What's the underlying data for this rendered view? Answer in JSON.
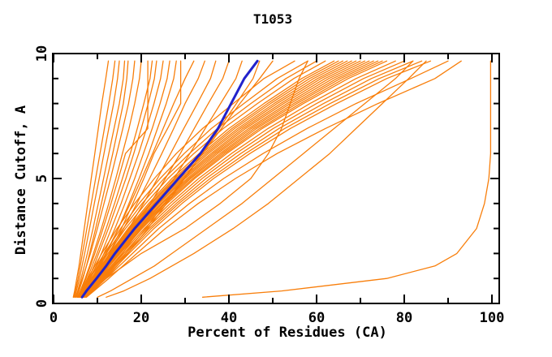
{
  "window": {
    "kind": "plot-image"
  },
  "chart_data": {
    "type": "line",
    "title": "T1053",
    "xlabel": "Percent of Residues (CA)",
    "ylabel": "Distance Cutoff, A",
    "xlim": [
      0,
      100
    ],
    "ylim": [
      0,
      10
    ],
    "x_major_ticks": [
      0,
      20,
      40,
      60,
      80,
      100
    ],
    "x_minor_tick_step": 10,
    "y_major_ticks": [
      0,
      5,
      10
    ],
    "y_minor_tick_step": 1,
    "grid": "off",
    "legend": "none",
    "frame": "full-box-with-mirrored-ticks",
    "colors": {
      "model": "#F87E0A",
      "highlight": "#2222CC",
      "axis": "#000000",
      "background": "#FFFFFF"
    },
    "series_note": "Each curve gives percent of CA residues (x) under distance cutoff (y). 'models' are orange prediction curves; 'highlight' is the thick blue curve; last model is the right-side outlier reaching ~100%.",
    "cutoff_values": [
      0.25,
      0.5,
      1,
      1.5,
      2,
      3,
      4,
      5,
      6,
      7,
      8,
      9,
      9.7
    ],
    "models": [
      [
        4.5,
        4.8,
        5.3,
        5.8,
        6.2,
        7.0,
        7.8,
        8.6,
        9.4,
        10.2,
        11.0,
        11.9,
        12.5
      ],
      [
        4.6,
        5.0,
        5.6,
        6.1,
        6.6,
        7.6,
        8.6,
        9.6,
        10.6,
        11.6,
        12.6,
        13.5,
        14.0
      ],
      [
        4.8,
        5.2,
        5.9,
        6.5,
        7.1,
        8.2,
        9.3,
        10.4,
        11.5,
        12.6,
        13.7,
        14.6,
        15.0
      ],
      [
        5.0,
        5.5,
        6.3,
        7.0,
        7.7,
        9.0,
        10.2,
        11.4,
        12.6,
        13.8,
        15.0,
        15.9,
        16.2
      ],
      [
        5.2,
        5.8,
        6.7,
        7.5,
        8.2,
        9.6,
        10.9,
        12.2,
        13.5,
        14.7,
        15.9,
        16.7,
        17.0
      ],
      [
        5.0,
        5.6,
        6.6,
        7.5,
        8.4,
        10.0,
        11.5,
        13.0,
        14.4,
        15.8,
        17.1,
        18.1,
        18.5
      ],
      [
        5.4,
        6.1,
        7.2,
        8.2,
        9.1,
        10.9,
        12.6,
        14.2,
        15.7,
        17.2,
        18.5,
        19.6,
        20.0
      ],
      [
        5.5,
        6.2,
        7.4,
        8.4,
        9.4,
        11.3,
        13.1,
        14.8,
        16.4,
        21.5,
        21.5,
        21.5,
        21.5
      ],
      [
        5.6,
        6.4,
        7.7,
        8.8,
        9.9,
        12.0,
        13.9,
        15.7,
        17.5,
        19.1,
        20.6,
        22.0,
        22.5
      ],
      [
        5.8,
        6.6,
        8.0,
        9.2,
        10.3,
        12.5,
        14.5,
        16.5,
        18.3,
        20.0,
        21.6,
        23.0,
        23.5
      ],
      [
        6.0,
        6.9,
        8.4,
        9.7,
        10.9,
        13.2,
        15.4,
        17.4,
        19.4,
        21.2,
        22.9,
        24.4,
        25.0
      ],
      [
        6.2,
        7.2,
        8.8,
        10.2,
        11.5,
        14.0,
        16.3,
        18.5,
        20.5,
        22.5,
        24.3,
        25.9,
        26.5
      ],
      [
        6.4,
        7.5,
        9.2,
        10.7,
        12.1,
        14.8,
        17.2,
        19.5,
        21.7,
        23.7,
        25.7,
        27.4,
        28.0
      ],
      [
        6.6,
        7.8,
        9.6,
        11.2,
        12.7,
        15.5,
        18.1,
        20.6,
        22.9,
        26.0,
        29.0,
        29.0,
        29.0
      ],
      [
        6.0,
        7.0,
        8.8,
        10.4,
        11.9,
        14.8,
        17.5,
        20.1,
        22.6,
        25.0,
        27.4,
        30.0,
        32.0
      ],
      [
        6.2,
        7.3,
        9.3,
        11.1,
        12.8,
        16.0,
        19.0,
        21.9,
        24.7,
        27.4,
        30.0,
        33.0,
        34.5
      ],
      [
        6.5,
        7.7,
        9.9,
        11.9,
        13.7,
        17.2,
        20.5,
        23.7,
        26.7,
        29.7,
        32.8,
        35.8,
        37.0
      ],
      [
        6.8,
        8.1,
        10.5,
        12.7,
        14.7,
        18.5,
        22.1,
        25.5,
        28.9,
        32.1,
        35.3,
        38.6,
        40.0
      ],
      [
        7.0,
        8.5,
        11.1,
        13.5,
        15.7,
        19.8,
        23.7,
        27.5,
        31.1,
        34.6,
        38.1,
        41.6,
        43.0
      ],
      [
        7.3,
        9.0,
        11.9,
        14.5,
        16.9,
        21.5,
        25.8,
        29.9,
        33.9,
        37.8,
        41.7,
        45.5,
        47.0
      ],
      [
        7.2,
        8.8,
        11.5,
        14.0,
        16.4,
        21.0,
        25.3,
        29.7,
        34.0,
        38.3,
        42.5,
        47.0,
        50.0
      ],
      [
        7.0,
        8.5,
        12.0,
        16.0,
        20.0,
        30.0,
        38.0,
        45.0,
        49.0,
        52.0,
        54.0,
        56.0,
        58.0
      ],
      [
        5.5,
        6.2,
        7.8,
        9.4,
        11.0,
        14.5,
        18.5,
        23.0,
        28.0,
        34.0,
        41.0,
        48.0,
        55.0
      ],
      [
        5.6,
        6.4,
        8.1,
        9.8,
        11.6,
        15.3,
        19.5,
        24.3,
        29.8,
        36.0,
        43.4,
        51.0,
        58.0
      ],
      [
        5.7,
        6.5,
        8.3,
        10.1,
        12.0,
        15.9,
        20.2,
        25.2,
        31.0,
        37.4,
        45.0,
        53.0,
        60.0
      ],
      [
        5.8,
        6.7,
        8.6,
        10.5,
        12.4,
        16.4,
        21.0,
        26.1,
        32.0,
        38.7,
        46.5,
        54.8,
        62.0
      ],
      [
        5.9,
        6.8,
        8.8,
        10.8,
        12.8,
        17.0,
        21.7,
        27.0,
        33.2,
        40.0,
        48.0,
        56.6,
        64.0
      ],
      [
        6.0,
        6.9,
        9.0,
        11.0,
        13.0,
        17.3,
        22.1,
        27.5,
        33.8,
        40.7,
        48.8,
        57.5,
        65.0
      ],
      [
        6.0,
        7.0,
        9.1,
        11.2,
        13.2,
        17.5,
        22.4,
        27.9,
        34.3,
        41.3,
        49.5,
        58.4,
        66.0
      ],
      [
        6.1,
        7.1,
        9.2,
        11.3,
        13.4,
        17.8,
        22.8,
        28.3,
        34.8,
        42.0,
        50.3,
        59.3,
        67.0
      ],
      [
        6.1,
        7.1,
        9.3,
        11.5,
        13.6,
        18.0,
        23.1,
        28.8,
        35.3,
        42.6,
        51.0,
        60.2,
        68.0
      ],
      [
        6.2,
        7.2,
        9.5,
        11.6,
        13.8,
        18.3,
        23.4,
        29.2,
        35.9,
        43.2,
        51.8,
        61.0,
        69.0
      ],
      [
        6.2,
        7.3,
        9.6,
        11.8,
        14.0,
        18.6,
        23.8,
        29.6,
        36.4,
        43.8,
        52.5,
        61.9,
        70.0
      ],
      [
        6.3,
        7.4,
        9.7,
        12.0,
        14.2,
        18.8,
        24.1,
        30.0,
        36.9,
        44.5,
        53.3,
        62.8,
        71.0
      ],
      [
        6.3,
        7.4,
        9.8,
        12.1,
        14.4,
        19.1,
        24.5,
        30.5,
        37.4,
        45.1,
        54.0,
        63.7,
        72.0
      ],
      [
        6.4,
        7.5,
        9.9,
        12.3,
        14.6,
        19.4,
        24.8,
        30.9,
        38.0,
        45.7,
        54.8,
        64.6,
        73.0
      ],
      [
        6.4,
        7.6,
        10.1,
        12.4,
        14.8,
        19.6,
        25.2,
        31.3,
        38.5,
        46.3,
        55.5,
        65.4,
        74.0
      ],
      [
        6.5,
        7.7,
        10.2,
        12.6,
        15.0,
        19.9,
        25.5,
        31.8,
        39.0,
        47.0,
        56.3,
        66.3,
        75.0
      ],
      [
        6.5,
        7.7,
        10.3,
        12.7,
        15.2,
        20.2,
        25.9,
        32.2,
        39.5,
        47.6,
        57.0,
        67.2,
        76.0
      ],
      [
        6.6,
        7.9,
        10.6,
        13.1,
        15.6,
        20.7,
        26.6,
        33.1,
        40.6,
        48.9,
        58.5,
        69.0,
        78.0
      ],
      [
        6.7,
        8.0,
        10.8,
        13.4,
        16.0,
        21.2,
        27.3,
        33.9,
        41.6,
        50.1,
        60.0,
        70.7,
        80.0
      ],
      [
        6.8,
        8.2,
        11.1,
        13.7,
        16.4,
        21.8,
        28.0,
        34.8,
        42.7,
        51.4,
        61.6,
        72.5,
        82.0
      ],
      [
        6.9,
        8.4,
        11.3,
        14.0,
        16.8,
        22.3,
        28.6,
        35.7,
        43.8,
        52.7,
        63.1,
        74.3,
        84.0
      ],
      [
        7.0,
        8.5,
        11.6,
        14.4,
        17.2,
        22.9,
        29.3,
        36.5,
        44.8,
        54.0,
        64.6,
        76.0,
        86.0
      ],
      [
        10.0,
        13.0,
        18.0,
        23.0,
        27.0,
        35.0,
        43.0,
        50.0,
        57.0,
        64.0,
        71.0,
        78.0,
        82.0
      ],
      [
        12.0,
        16.0,
        22.0,
        27.0,
        32.0,
        41.0,
        49.0,
        56.0,
        63.0,
        69.0,
        75.0,
        81.0,
        85.0
      ],
      [
        7.2,
        8.8,
        12.0,
        15.0,
        18.0,
        24.0,
        31.0,
        38.8,
        47.8,
        57.8,
        69.0,
        81.5,
        90.0
      ],
      [
        7.5,
        9.2,
        12.6,
        15.8,
        19.0,
        25.5,
        33.0,
        41.5,
        51.0,
        62.0,
        74.0,
        87.0,
        93.0
      ],
      [
        34.0,
        52.0,
        76.0,
        87.0,
        92.0,
        96.5,
        98.3,
        99.3,
        99.7,
        99.7,
        99.7,
        99.7,
        99.7
      ]
    ],
    "highlight": [
      6.5,
      7.5,
      9.8,
      12.0,
      14.0,
      18.5,
      23.5,
      28.5,
      33.5,
      37.5,
      40.5,
      43.5,
      46.5
    ]
  }
}
